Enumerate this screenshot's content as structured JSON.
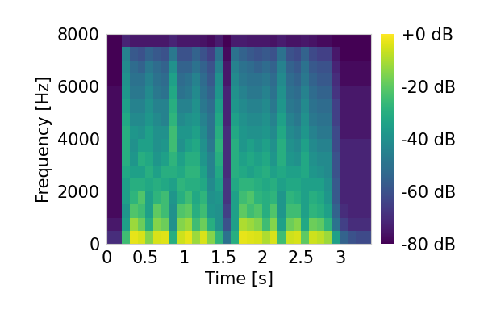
{
  "chart_data": {
    "type": "heatmap",
    "x_label": "Time [s]",
    "y_label": "Frequency [Hz]",
    "xlim": [
      0,
      3.4
    ],
    "ylim": [
      0,
      8000
    ],
    "xticks": [
      0,
      0.5,
      1,
      1.5,
      2,
      2.5,
      3
    ],
    "yticks": [
      0,
      2000,
      4000,
      6000,
      8000
    ],
    "grid": false,
    "x_bins": [
      0,
      0.1,
      0.2,
      0.3,
      0.4,
      0.5,
      0.6,
      0.7,
      0.8,
      0.9,
      1.0,
      1.1,
      1.2,
      1.3,
      1.4,
      1.5,
      1.6,
      1.7,
      1.8,
      1.9,
      2.0,
      2.1,
      2.2,
      2.3,
      2.4,
      2.5,
      2.6,
      2.7,
      2.8,
      2.9,
      3.0,
      3.1,
      3.2,
      3.3,
      3.4
    ],
    "y_bins": [
      0,
      500,
      1000,
      1500,
      2000,
      2500,
      3000,
      3500,
      4000,
      4500,
      5000,
      5500,
      6000,
      6500,
      7000,
      7500,
      8000
    ],
    "cells": [
      [
        -70,
        -75,
        -78,
        -78,
        -78,
        -78,
        -78,
        -78,
        -78,
        -78,
        -78,
        -78,
        -80,
        -80,
        -80,
        -80
      ],
      [
        -70,
        -75,
        -78,
        -78,
        -78,
        -78,
        -78,
        -78,
        -78,
        -78,
        -78,
        -78,
        -80,
        -80,
        -80,
        -80
      ],
      [
        -25,
        -35,
        -38,
        -35,
        -35,
        -32,
        -30,
        -30,
        -30,
        -32,
        -35,
        -38,
        -40,
        -42,
        -45,
        -72
      ],
      [
        -3,
        -12,
        -22,
        -28,
        -30,
        -35,
        -38,
        -40,
        -38,
        -42,
        -45,
        -48,
        -50,
        -52,
        -58,
        -75
      ],
      [
        -5,
        -18,
        -25,
        -22,
        -30,
        -35,
        -30,
        -35,
        -40,
        -42,
        -45,
        -48,
        -50,
        -55,
        -60,
        -75
      ],
      [
        -15,
        -30,
        -35,
        -35,
        -32,
        -30,
        -32,
        -35,
        -35,
        -38,
        -40,
        -42,
        -45,
        -48,
        -55,
        -75
      ],
      [
        -5,
        -15,
        -20,
        -28,
        -30,
        -35,
        -38,
        -40,
        -40,
        -42,
        -45,
        -48,
        -50,
        -52,
        -58,
        -75
      ],
      [
        -4,
        -18,
        -25,
        -25,
        -32,
        -30,
        -35,
        -38,
        -40,
        -45,
        -45,
        -50,
        -52,
        -55,
        -60,
        -75
      ],
      [
        -30,
        -40,
        -40,
        -38,
        -35,
        -30,
        -28,
        -25,
        -25,
        -28,
        -30,
        -32,
        -35,
        -40,
        -48,
        -72
      ],
      [
        -6,
        -15,
        -22,
        -30,
        -28,
        -32,
        -35,
        -40,
        -38,
        -42,
        -45,
        -50,
        -52,
        -55,
        -60,
        -75
      ],
      [
        -3,
        -12,
        -20,
        -25,
        -30,
        -28,
        -30,
        -35,
        -38,
        -40,
        -45,
        -48,
        -50,
        -55,
        -60,
        -75
      ],
      [
        -12,
        -25,
        -30,
        -32,
        -30,
        -28,
        -30,
        -32,
        -35,
        -38,
        -40,
        -42,
        -45,
        -50,
        -55,
        -75
      ],
      [
        -5,
        -18,
        -25,
        -28,
        -32,
        -35,
        -38,
        -40,
        -42,
        -45,
        -48,
        -50,
        -52,
        -55,
        -60,
        -76
      ],
      [
        -15,
        -30,
        -38,
        -40,
        -42,
        -45,
        -45,
        -48,
        -50,
        -50,
        -52,
        -55,
        -58,
        -60,
        -65,
        -78
      ],
      [
        -28,
        -40,
        -40,
        -38,
        -35,
        -32,
        -30,
        -28,
        -30,
        -32,
        -35,
        -38,
        -40,
        -45,
        -50,
        -74
      ],
      [
        -50,
        -60,
        -65,
        -68,
        -68,
        -70,
        -70,
        -70,
        -70,
        -72,
        -72,
        -72,
        -75,
        -75,
        -78,
        -80
      ],
      [
        -30,
        -35,
        -35,
        -35,
        -32,
        -30,
        -30,
        -30,
        -32,
        -35,
        -38,
        -40,
        -42,
        -45,
        -50,
        -74
      ],
      [
        -3,
        -10,
        -20,
        -25,
        -28,
        -32,
        -35,
        -38,
        -38,
        -40,
        -42,
        -45,
        -48,
        -50,
        -55,
        -74
      ],
      [
        -4,
        -12,
        -25,
        -22,
        -28,
        -35,
        -32,
        -35,
        -40,
        -42,
        -45,
        -48,
        -50,
        -52,
        -58,
        -75
      ],
      [
        -5,
        -15,
        -22,
        -28,
        -30,
        -32,
        -35,
        -38,
        -40,
        -42,
        -45,
        -48,
        -50,
        -55,
        -60,
        -75
      ],
      [
        -10,
        -25,
        -30,
        -30,
        -32,
        -30,
        -32,
        -35,
        -38,
        -40,
        -42,
        -45,
        -48,
        -52,
        -58,
        -75
      ],
      [
        -5,
        -15,
        -22,
        -28,
        -30,
        -35,
        -38,
        -40,
        -42,
        -45,
        -48,
        -50,
        -52,
        -55,
        -60,
        -76
      ],
      [
        -25,
        -35,
        -38,
        -38,
        -35,
        -32,
        -30,
        -30,
        -32,
        -35,
        -38,
        -40,
        -42,
        -45,
        -50,
        -74
      ],
      [
        -6,
        -18,
        -25,
        -28,
        -32,
        -35,
        -38,
        -40,
        -42,
        -45,
        -48,
        -50,
        -52,
        -55,
        -60,
        -76
      ],
      [
        -5,
        -15,
        -25,
        -30,
        -32,
        -35,
        -40,
        -42,
        -45,
        -48,
        -50,
        -52,
        -55,
        -58,
        -62,
        -76
      ],
      [
        -20,
        -32,
        -35,
        -35,
        -35,
        -32,
        -32,
        -35,
        -38,
        -40,
        -42,
        -45,
        -48,
        -50,
        -55,
        -75
      ],
      [
        -6,
        -18,
        -28,
        -30,
        -35,
        -38,
        -40,
        -42,
        -45,
        -48,
        -50,
        -52,
        -55,
        -58,
        -62,
        -76
      ],
      [
        -8,
        -20,
        -30,
        -32,
        -35,
        -40,
        -42,
        -45,
        -48,
        -50,
        -52,
        -55,
        -58,
        -60,
        -65,
        -78
      ],
      [
        -12,
        -28,
        -35,
        -38,
        -40,
        -42,
        -42,
        -45,
        -48,
        -50,
        -52,
        -55,
        -58,
        -60,
        -65,
        -78
      ],
      [
        -35,
        -50,
        -55,
        -58,
        -58,
        -60,
        -60,
        -62,
        -62,
        -65,
        -65,
        -68,
        -70,
        -72,
        -75,
        -80
      ],
      [
        -55,
        -65,
        -70,
        -72,
        -72,
        -72,
        -72,
        -72,
        -75,
        -75,
        -75,
        -75,
        -78,
        -78,
        -80,
        -80
      ],
      [
        -60,
        -70,
        -72,
        -72,
        -72,
        -72,
        -72,
        -72,
        -75,
        -75,
        -75,
        -75,
        -78,
        -78,
        -80,
        -80
      ],
      [
        -62,
        -70,
        -72,
        -72,
        -72,
        -72,
        -72,
        -72,
        -75,
        -75,
        -75,
        -75,
        -78,
        -78,
        -80,
        -80
      ],
      [
        -62,
        -70,
        -72,
        -72,
        -72,
        -72,
        -72,
        -72,
        -75,
        -75,
        -75,
        -75,
        -78,
        -78,
        -80,
        -80
      ]
    ],
    "colorbar": {
      "range": [
        -80,
        0
      ],
      "ticks": [
        {
          "value": 0,
          "label": "+0 dB"
        },
        {
          "value": -20,
          "label": "-20 dB"
        },
        {
          "value": -40,
          "label": "-40 dB"
        },
        {
          "value": -60,
          "label": "-60 dB"
        },
        {
          "value": -80,
          "label": "-80 dB"
        }
      ]
    }
  }
}
